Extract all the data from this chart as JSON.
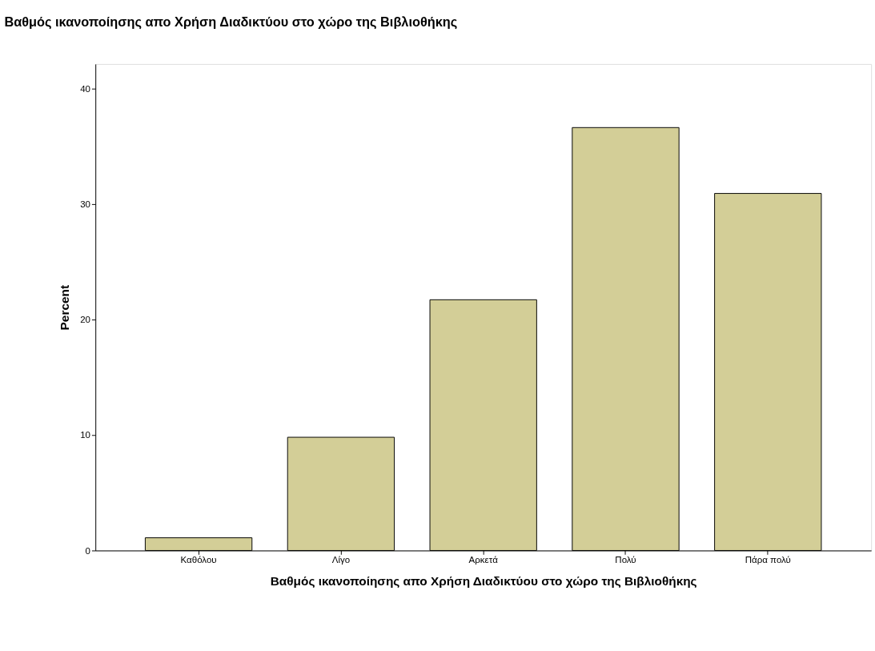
{
  "chart_data": {
    "type": "bar",
    "title": "Βαθμός ικανοποίησης απο Χρήση Διαδικτύου στο χώρο της Βιβλιοθήκης",
    "xlabel": "Βαθμός ικανοποίησης απο Χρήση Διαδικτύου στο χώρο της Βιβλιοθήκης",
    "ylabel": "Percent",
    "categories": [
      "Καθόλου",
      "Λίγο",
      "Αρκετά",
      "Πολύ",
      "Πάρα πολύ"
    ],
    "values": [
      1.1,
      9.8,
      21.7,
      36.6,
      30.9
    ],
    "color": "#d3ce97",
    "ylim": [
      0,
      42.1
    ],
    "yticks": [
      0,
      10,
      20,
      30,
      40
    ],
    "grid": false
  }
}
